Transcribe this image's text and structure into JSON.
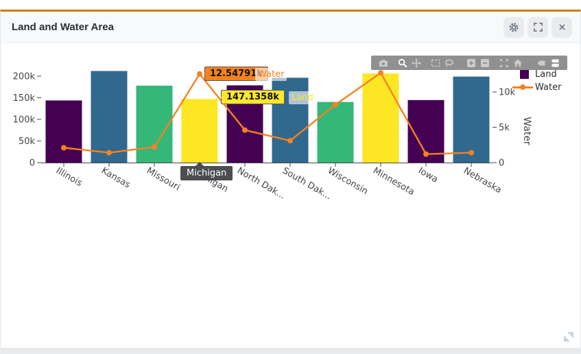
{
  "window": {
    "title": "Land and Water Area",
    "controls": [
      "settings",
      "fullscreen",
      "close"
    ]
  },
  "modebar": {
    "buttons": [
      "download-plot-as-png",
      "zoom",
      "pan",
      "box-select",
      "lasso-select",
      "zoom-in",
      "zoom-out",
      "autoscale",
      "reset-axes",
      "show-closest-data-on-hover",
      "compare-data-on-hover"
    ],
    "active": [
      "zoom",
      "compare-data-on-hover"
    ]
  },
  "chart_data": {
    "type": "bar+line",
    "categories": [
      "Illinois",
      "Kansas",
      "Missouri",
      "Michigan",
      "North Dakota",
      "South Dakota",
      "Wisconsin",
      "Minnesota",
      "Iowa",
      "Nebraska"
    ],
    "x_tick_labels": [
      "Illinois",
      "Kansas",
      "Missouri",
      "Michigan",
      "North Dak...",
      "South Dak...",
      "Wisconsin",
      "Minnesota",
      "Iowa",
      "Nebraska"
    ],
    "series": [
      {
        "name": "Land",
        "type": "bar",
        "axis": "left",
        "unit": "thousand (k)",
        "values_thousands": [
          143.8,
          211.9,
          178.0,
          147.1358,
          178.7,
          196.3,
          140.3,
          206.2,
          144.7,
          199.0
        ]
      },
      {
        "name": "Water",
        "type": "line",
        "axis": "right",
        "unit": "thousand (k)",
        "values_thousands": [
          2.1,
          1.4,
          2.2,
          12.54791,
          4.6,
          3.1,
          8.2,
          12.7,
          1.2,
          1.4
        ]
      }
    ],
    "y_left": {
      "ticks": [
        0,
        50,
        100,
        150,
        200
      ],
      "labels": [
        "0",
        "50k",
        "100k",
        "150k",
        "200k"
      ],
      "range_thousands": [
        0,
        220
      ]
    },
    "y_right": {
      "ticks": [
        0,
        5,
        10
      ],
      "labels": [
        "0",
        "5k",
        "10k"
      ],
      "title": "Water",
      "range_thousands": [
        0,
        14
      ]
    },
    "legend": [
      {
        "label": "Land",
        "color": "#440154",
        "marker": "square"
      },
      {
        "label": "Water",
        "color": "#f5821f",
        "marker": "line"
      }
    ],
    "legend_position": "top-right",
    "grid": false,
    "bar_colors": [
      "#440154",
      "#31688e",
      "#35b779",
      "#fde725"
    ],
    "line_color": "#f5821f",
    "hover_index": 3
  },
  "tooltips": {
    "water": {
      "value": "12.54791k",
      "trace": "Water"
    },
    "land": {
      "value": "147.1358k",
      "trace": "Land"
    },
    "axis": {
      "label": "Michigan"
    }
  },
  "colors": {
    "accent_top_border": "#d07d10",
    "header_bg": "#f8f9fa",
    "modebar_bg": "#909090",
    "hover_water_bg": "#f5821f",
    "hover_land_bg": "#ffe72d"
  }
}
